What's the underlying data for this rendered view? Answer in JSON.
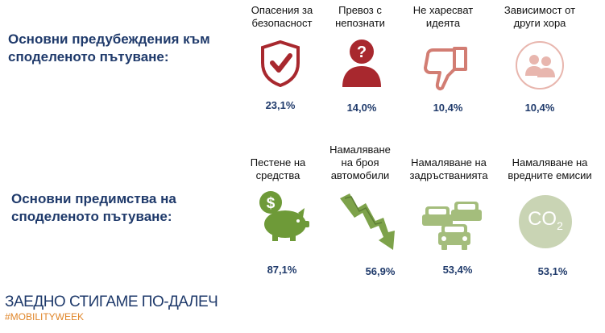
{
  "barriers": {
    "heading": "Основни предубеждения към\nсподеленото пътуване:",
    "items": [
      {
        "label": "Опасения за\nбезопасност",
        "value": "23,1%",
        "icon": "shield-check-icon",
        "color": "#a8282e"
      },
      {
        "label": "Превоз с\nнепознати",
        "value": "14,0%",
        "icon": "person-question-icon",
        "color": "#a8282e"
      },
      {
        "label": "Не харесват\nидеята",
        "value": "10,4%",
        "icon": "thumbs-down-icon",
        "color": "#d27d73"
      },
      {
        "label": "Зависимост от\nдруги хора",
        "value": "10,4%",
        "icon": "people-icon",
        "color": "#e8b6ae"
      }
    ]
  },
  "benefits": {
    "heading": "Основни предимства на\nсподеленото пътуване:",
    "items": [
      {
        "label": "Пестене на\nсредства",
        "value": "87,1%",
        "icon": "piggy-bank-icon",
        "color": "#6e9a38"
      },
      {
        "label": "Намаляване\nна броя\nавтомобили",
        "value": "56,9%",
        "icon": "downtrend-arrow-icon",
        "color": "#7da24a"
      },
      {
        "label": "Намаляване на\nзадръстванията",
        "value": "53,4%",
        "icon": "traffic-cars-icon",
        "color": "#a4bd7c"
      },
      {
        "label": "Намаляване на\nвредните емисии",
        "value": "53,1%",
        "icon": "co2-icon",
        "color": "#c9d4b4",
        "icon_text": "CO",
        "icon_sub": "2"
      }
    ]
  },
  "footer": {
    "title": "ЗАЕДНО СТИГАМЕ ПО-ДАЛЕЧ",
    "hashtag": "#MOBILITYWEEK"
  }
}
